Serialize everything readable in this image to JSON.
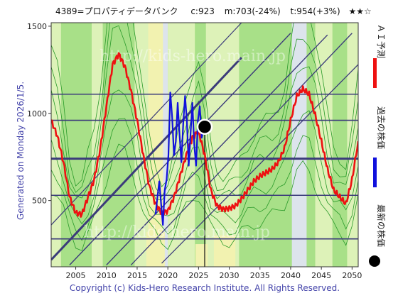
{
  "header": {
    "ticker": "4389=プロパティデータバンク",
    "current": "c:923",
    "middle": "m:703(-24%)",
    "target": "t:954(+3%)",
    "rating": "★★☆"
  },
  "side_left": "Generated on Monday 2026/1/5.",
  "legend": {
    "forecast": "ＡＩ予測",
    "past": "過去の株価",
    "latest": "最新の株価"
  },
  "copyright": "Copyright (c) Kids-Hero Research Institute. All Rights Reserved.",
  "watermark": "http://kids-hero.main.jp",
  "colors": {
    "forecast": "#ee1111",
    "past": "#1111dd",
    "background_green": "#a8e088",
    "light_band": "#ddf2b8",
    "grey_band": "#dde4ec",
    "yellow_band": "#f2f2b0",
    "grid": "#3b3b7a",
    "frame": "#333333"
  },
  "chart_data": {
    "type": "line",
    "xlim": [
      2001,
      2051
    ],
    "ylim": [
      120,
      1520
    ],
    "x_ticks": [
      "2005",
      "2010",
      "2015",
      "2020",
      "2025",
      "2030",
      "2035",
      "2040",
      "2045",
      "2050"
    ],
    "y_ticks": [
      "500",
      "1000",
      "1500"
    ],
    "horizontal_levels": [
      280,
      530,
      740,
      960,
      1110
    ],
    "latest_point": {
      "x": 2026.0,
      "y": 923
    },
    "series": [
      {
        "name": "ＡＩ予測",
        "x": [
          2001,
          2002,
          2003,
          2004,
          2005,
          2006,
          2007,
          2008,
          2009,
          2010,
          2011,
          2012,
          2013,
          2014,
          2015,
          2016,
          2017,
          2018,
          2019,
          2020,
          2021,
          2022,
          2023,
          2024,
          2025,
          2026,
          2027,
          2028,
          2029,
          2030,
          2031,
          2032,
          2033,
          2034,
          2035,
          2036,
          2037,
          2038,
          2039,
          2040,
          2041,
          2042,
          2043,
          2044,
          2045,
          2046,
          2047,
          2048,
          2049,
          2050,
          2051
        ],
        "y": [
          960,
          870,
          720,
          520,
          430,
          420,
          520,
          620,
          800,
          1040,
          1280,
          1340,
          1270,
          1130,
          960,
          760,
          580,
          480,
          430,
          440,
          520,
          640,
          760,
          860,
          900,
          760,
          560,
          470,
          450,
          455,
          470,
          510,
          560,
          610,
          640,
          660,
          680,
          720,
          800,
          960,
          1100,
          1140,
          1110,
          990,
          840,
          680,
          560,
          520,
          480,
          620,
          840
        ]
      },
      {
        "name": "過去の株価",
        "x": [
          2018.0,
          2018.3,
          2018.6,
          2018.9,
          2019.2,
          2019.5,
          2019.8,
          2020.1,
          2020.4,
          2020.7,
          2021.0,
          2021.3,
          2021.6,
          2021.9,
          2022.2,
          2022.5,
          2022.8,
          2023.1,
          2023.4,
          2023.7,
          2024.0,
          2024.3,
          2024.6,
          2024.9,
          2025.2,
          2025.5,
          2025.8,
          2026.0
        ],
        "y": [
          420,
          520,
          610,
          480,
          360,
          560,
          620,
          760,
          1120,
          980,
          760,
          840,
          1060,
          880,
          720,
          940,
          1100,
          960,
          700,
          880,
          1060,
          820,
          700,
          960,
          1040,
          860,
          900,
          923
        ]
      }
    ]
  }
}
